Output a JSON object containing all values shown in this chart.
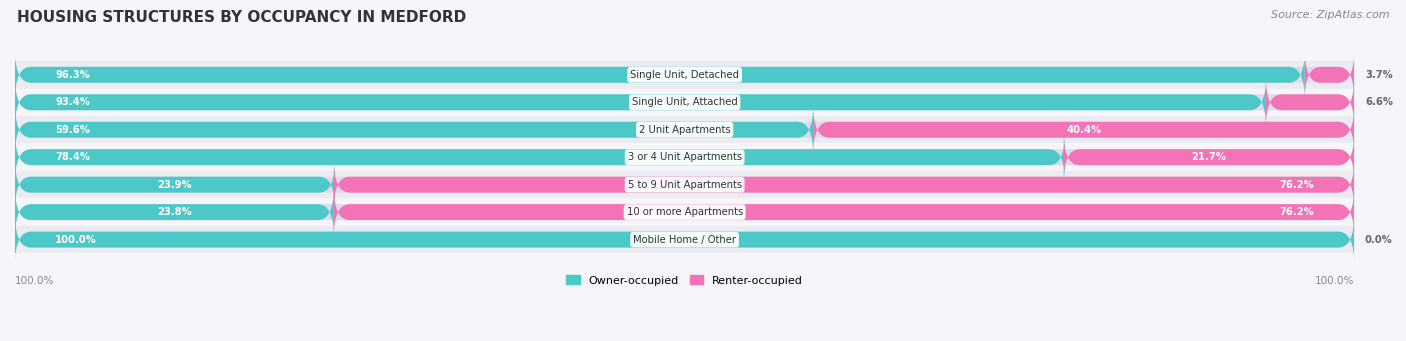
{
  "title": "HOUSING STRUCTURES BY OCCUPANCY IN MEDFORD",
  "source": "Source: ZipAtlas.com",
  "categories": [
    "Single Unit, Detached",
    "Single Unit, Attached",
    "2 Unit Apartments",
    "3 or 4 Unit Apartments",
    "5 to 9 Unit Apartments",
    "10 or more Apartments",
    "Mobile Home / Other"
  ],
  "owner_pct": [
    96.3,
    93.4,
    59.6,
    78.4,
    23.9,
    23.8,
    100.0
  ],
  "renter_pct": [
    3.7,
    6.6,
    40.4,
    21.7,
    76.2,
    76.2,
    0.0
  ],
  "owner_color": "#4DC8C8",
  "renter_color": "#F472B6",
  "bar_bg_color": "#DCDCE8",
  "row_bg_even": "#EBEBF2",
  "row_bg_odd": "#F5F5FA",
  "title_fontsize": 11,
  "source_fontsize": 8,
  "bar_height": 0.58,
  "figsize": [
    14.06,
    3.41
  ],
  "dpi": 100
}
